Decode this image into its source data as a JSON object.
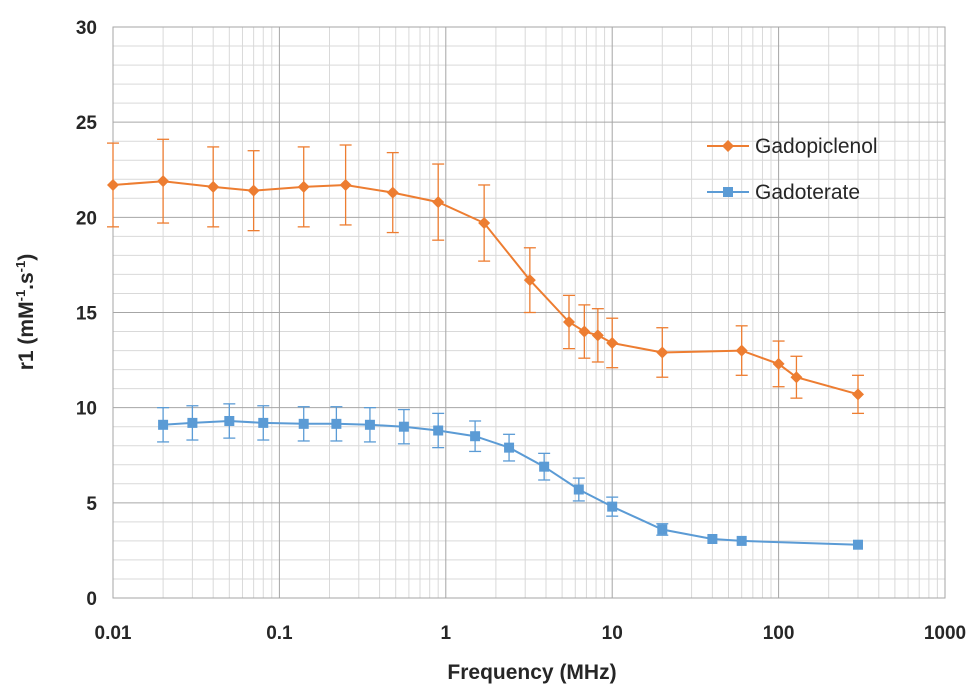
{
  "chart_data": {
    "type": "line",
    "xscale": "log",
    "xlim": [
      0.01,
      1000
    ],
    "ylim": [
      0,
      30
    ],
    "xticks": [
      "0.01",
      "0.1",
      "1",
      "10",
      "100",
      "1000"
    ],
    "yticks": [
      "0",
      "5",
      "10",
      "15",
      "20",
      "25",
      "30"
    ],
    "xlabel": "Frequency (MHz)",
    "ylabel": "r1 (mM-1.s-1)",
    "ylabel_parts": [
      "r1  (mM",
      "-1",
      ".s",
      "-1",
      ")"
    ],
    "grid": true,
    "legend_position": "top-right",
    "series": [
      {
        "name": "Gadopiclenol",
        "color": "#ED7D31",
        "marker": "diamond",
        "x": [
          0.01,
          0.02,
          0.04,
          0.07,
          0.14,
          0.25,
          0.48,
          0.9,
          1.7,
          3.2,
          5.5,
          6.8,
          8.2,
          10,
          20,
          60,
          100,
          128,
          300
        ],
        "y": [
          21.7,
          21.9,
          21.6,
          21.4,
          21.6,
          21.7,
          21.3,
          20.8,
          19.7,
          16.7,
          14.5,
          14.0,
          13.8,
          13.4,
          12.9,
          13.0,
          12.3,
          11.6,
          10.7
        ],
        "err": [
          2.2,
          2.2,
          2.1,
          2.1,
          2.1,
          2.1,
          2.1,
          2.0,
          2.0,
          1.7,
          1.4,
          1.4,
          1.4,
          1.3,
          1.3,
          1.3,
          1.2,
          1.1,
          1.0
        ]
      },
      {
        "name": "Gadoterate",
        "color": "#5B9BD5",
        "marker": "square",
        "x": [
          0.02,
          0.03,
          0.05,
          0.08,
          0.14,
          0.22,
          0.35,
          0.56,
          0.9,
          1.5,
          2.4,
          3.9,
          6.3,
          10,
          20,
          40,
          60,
          300
        ],
        "y": [
          9.1,
          9.2,
          9.3,
          9.2,
          9.15,
          9.15,
          9.1,
          9.0,
          8.8,
          8.5,
          7.9,
          6.9,
          5.7,
          4.8,
          3.6,
          3.1,
          3.0,
          2.8
        ],
        "err": [
          0.9,
          0.9,
          0.9,
          0.9,
          0.9,
          0.9,
          0.9,
          0.9,
          0.9,
          0.8,
          0.7,
          0.7,
          0.6,
          0.5,
          0.3,
          0.0,
          0.0,
          0.0
        ]
      }
    ]
  }
}
